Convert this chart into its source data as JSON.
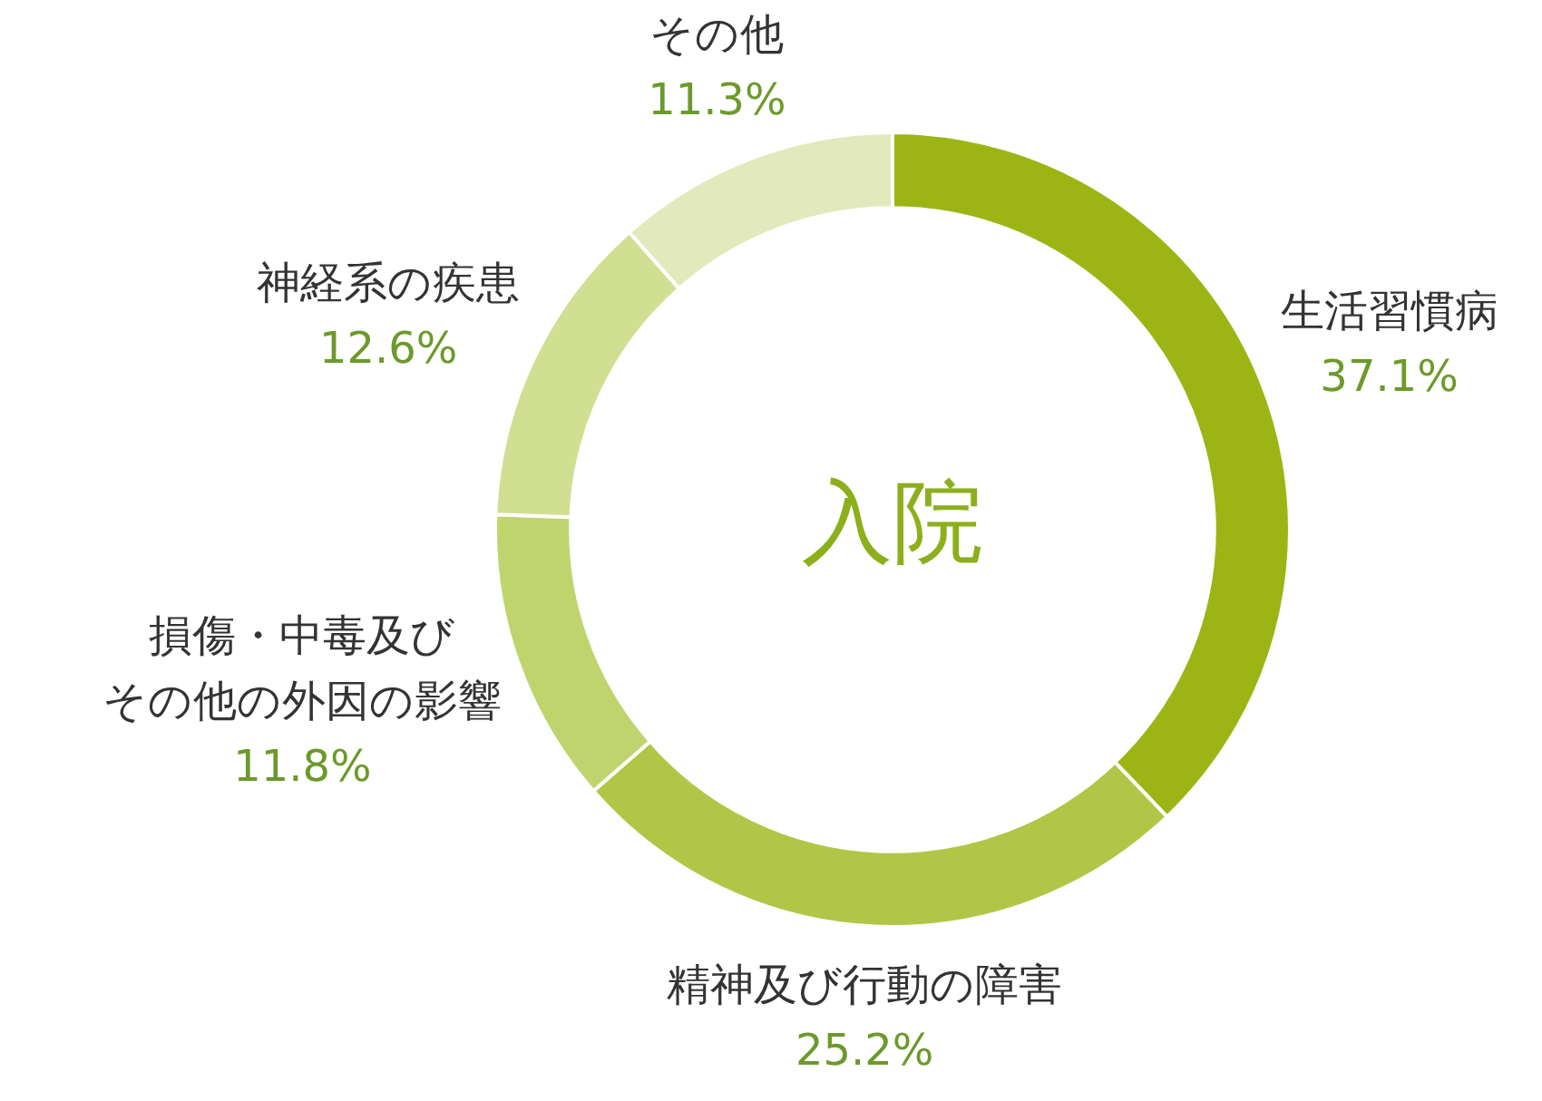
{
  "chart_data": {
    "type": "donut",
    "title": "入院",
    "categories": [
      "生活習慣病",
      "精神及び行動の障害",
      "損傷・中毒及びその他の外因の影響",
      "神経系の疾患",
      "その他"
    ],
    "values": [
      37.1,
      25.2,
      11.8,
      12.6,
      11.3
    ],
    "colors": [
      "#9cb515",
      "#b1c646",
      "#c0d46e",
      "#d0df91",
      "#e2eabd"
    ],
    "value_labels": [
      "37.1%",
      "25.2%",
      "11.8%",
      "12.6%",
      "11.3%"
    ],
    "legend": false
  }
}
